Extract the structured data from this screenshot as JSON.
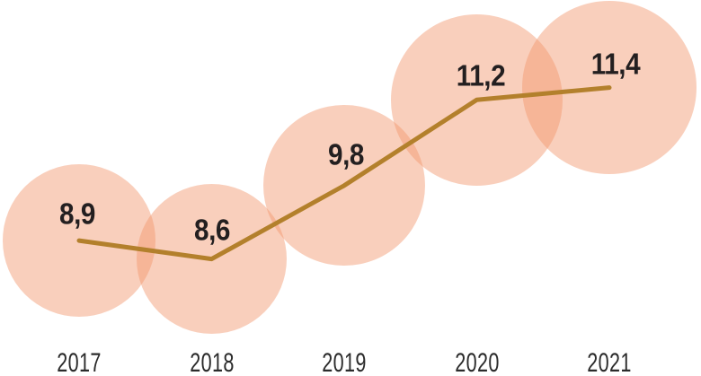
{
  "chart_data": {
    "type": "line",
    "subtype": "bubble",
    "title": "",
    "xlabel": "",
    "ylabel": "",
    "categories": [
      "2017",
      "2018",
      "2019",
      "2020",
      "2021"
    ],
    "values": [
      8.9,
      8.6,
      9.8,
      11.2,
      11.4
    ],
    "value_labels": [
      "8,9",
      "8,6",
      "9,8",
      "11,2",
      "11,4"
    ],
    "decimal_separator": ",",
    "grid": false,
    "legend_position": "none",
    "axes_visible": false,
    "bubble_scaling": "area-proportional-to-value",
    "colors": {
      "bubble_fill": "#F1946A",
      "bubble_opacity": 0.45,
      "line": "#B3802C",
      "value_label_text": "#231F20",
      "year_label_text": "#2B2B2B",
      "background": "#FFFFFF"
    }
  }
}
